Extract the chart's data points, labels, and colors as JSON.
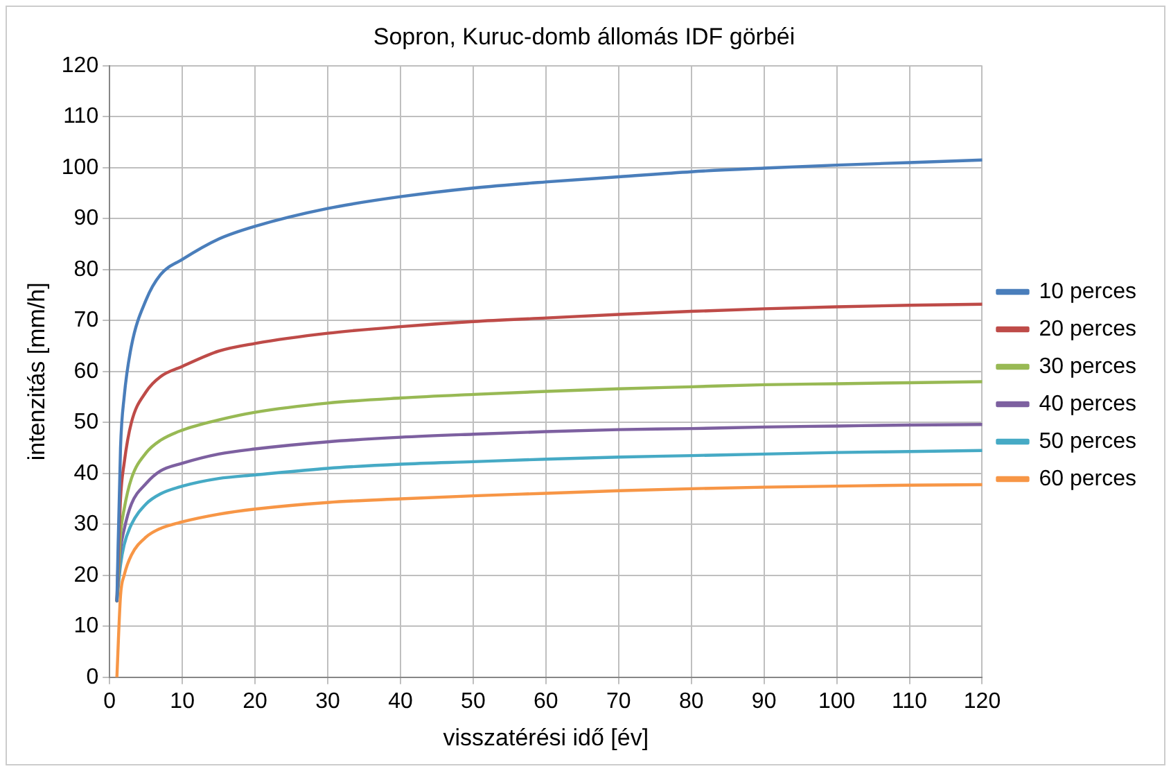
{
  "chart_data": {
    "type": "line",
    "title": "Sopron, Kuruc-domb állomás IDF görbéi",
    "xlabel": "visszatérési idő [év]",
    "ylabel": "intenzitás [mm/h]",
    "x": [
      1,
      1.5,
      2,
      3,
      5,
      7,
      10,
      15,
      20,
      30,
      40,
      50,
      60,
      70,
      80,
      90,
      100,
      110,
      120
    ],
    "xlim": [
      0,
      120
    ],
    "xticks": [
      0,
      10,
      20,
      30,
      40,
      50,
      60,
      70,
      80,
      90,
      100,
      110,
      120
    ],
    "ylim": [
      0,
      120
    ],
    "yticks": [
      0,
      10,
      20,
      30,
      40,
      50,
      60,
      70,
      80,
      90,
      100,
      110,
      120
    ],
    "grid": true,
    "legend": "right",
    "marker": "none",
    "line_style": "solid",
    "series": [
      {
        "name": "10 perces",
        "color": "#4a7ebb",
        "values": [
          15,
          45,
          55,
          65,
          74,
          79,
          82,
          86,
          88.5,
          92,
          94.3,
          96,
          97.2,
          98.2,
          99.2,
          99.9,
          100.5,
          101,
          101.5
        ]
      },
      {
        "name": "20 perces",
        "color": "#be4b48",
        "values": [
          15,
          35,
          42,
          50,
          56,
          59,
          61,
          64,
          65.5,
          67.5,
          68.8,
          69.8,
          70.5,
          71.2,
          71.8,
          72.3,
          72.7,
          73,
          73.2
        ]
      },
      {
        "name": "30 perces",
        "color": "#98b954",
        "values": [
          15,
          28,
          33,
          39,
          44,
          46.5,
          48.5,
          50.5,
          52,
          53.8,
          54.8,
          55.5,
          56.1,
          56.6,
          57,
          57.4,
          57.6,
          57.8,
          58
        ]
      },
      {
        "name": "40 perces",
        "color": "#7d60a0",
        "values": [
          15,
          25,
          29,
          34,
          38,
          40.5,
          42,
          43.8,
          44.8,
          46.2,
          47.1,
          47.7,
          48.2,
          48.6,
          48.8,
          49.1,
          49.3,
          49.5,
          49.6
        ]
      },
      {
        "name": "50 perces",
        "color": "#46aac5",
        "values": [
          15,
          22,
          26,
          30,
          34,
          36,
          37.5,
          39,
          39.7,
          41,
          41.8,
          42.3,
          42.8,
          43.2,
          43.5,
          43.8,
          44.1,
          44.3,
          44.5
        ]
      },
      {
        "name": "60 perces",
        "color": "#f79646",
        "values": [
          0,
          16,
          20,
          24,
          27.5,
          29.2,
          30.5,
          32,
          33,
          34.3,
          35,
          35.6,
          36.1,
          36.6,
          37,
          37.3,
          37.5,
          37.7,
          37.8
        ]
      }
    ]
  }
}
